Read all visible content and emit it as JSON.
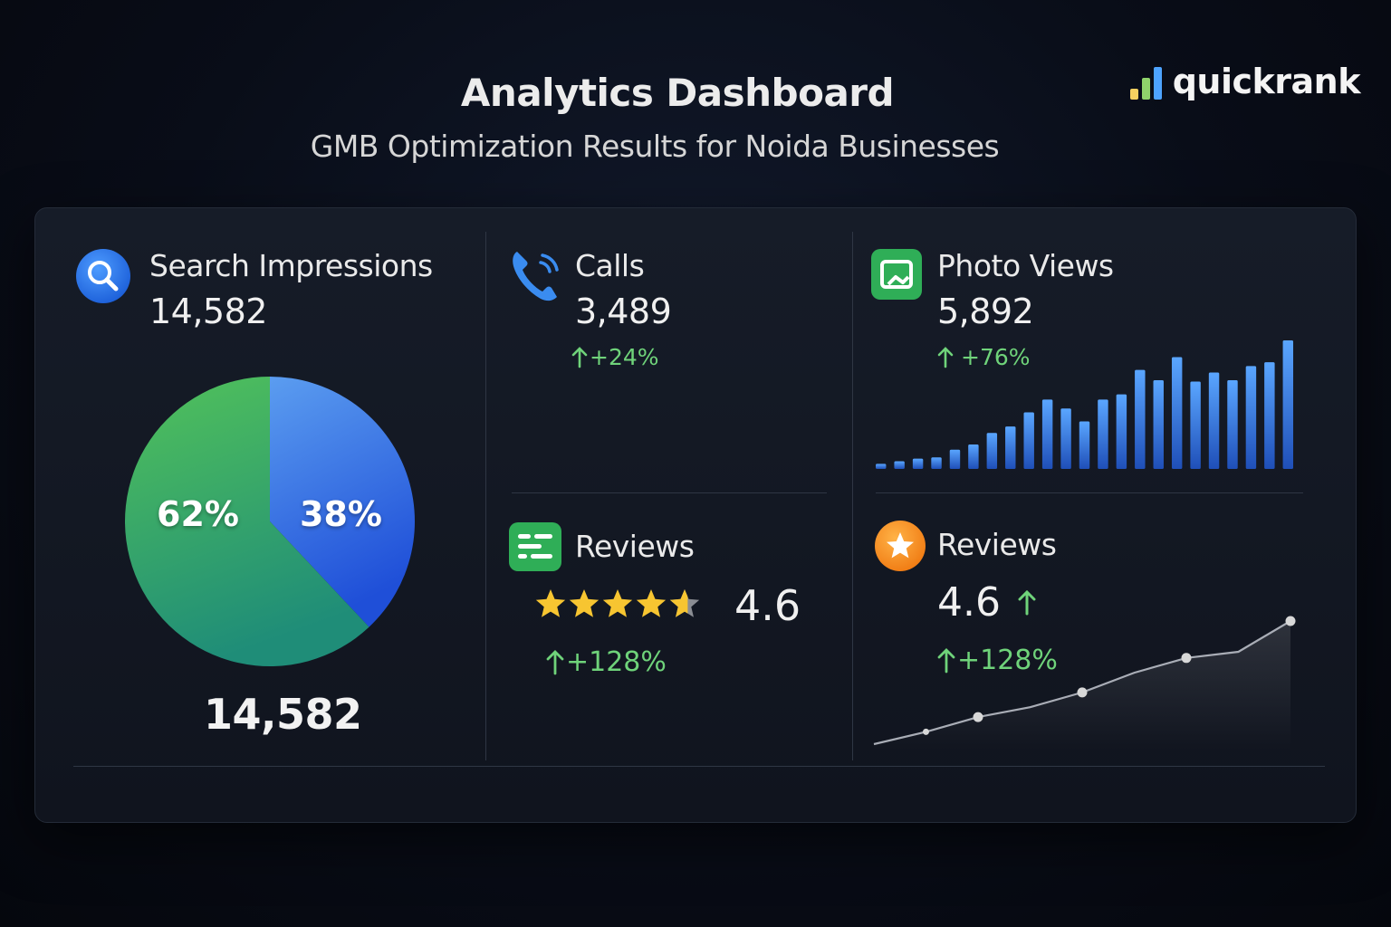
{
  "header": {
    "title": "Analytics Dashboard",
    "subtitle": "GMB Optimization Results for Noida Businesses"
  },
  "brand": {
    "name": "quickrank",
    "bar_colors": [
      "#f5d060",
      "#8fd36b",
      "#4da3ff"
    ]
  },
  "colors": {
    "accent_green": "#6fd37a",
    "pie_green": "#3cb86a",
    "pie_blue": "#2f6cf0",
    "bar_blue": "#3f86ea",
    "star_gold": "#f7c531",
    "star_grey": "#8a8d93"
  },
  "search": {
    "title": "Search Impressions",
    "value": "14,582",
    "total": "14,582",
    "icon": "search-icon"
  },
  "calls": {
    "title": "Calls",
    "value": "3,489",
    "delta": "+24%",
    "icon": "phone-icon"
  },
  "photos": {
    "title": "Photo Views",
    "value": "5,892",
    "delta": "+76%",
    "icon": "photo-icon"
  },
  "reviews_left": {
    "title": "Reviews",
    "rating": "4.6",
    "delta": "+128%",
    "icon": "reviews-list-icon"
  },
  "reviews_right": {
    "title": "Reviews",
    "rating": "4.6",
    "delta": "+128%",
    "icon": "star-badge-icon"
  },
  "chart_data": [
    {
      "type": "pie",
      "slices": [
        {
          "label": "62%",
          "value": 62,
          "color": "#3cb86a"
        },
        {
          "label": "38%",
          "value": 38,
          "color": "#2f6cf0"
        }
      ],
      "title": ""
    },
    {
      "type": "bar",
      "values": [
        4,
        6,
        8,
        9,
        15,
        19,
        28,
        33,
        44,
        54,
        47,
        37,
        54,
        58,
        77,
        69,
        87,
        68,
        75,
        69,
        80,
        83,
        100
      ],
      "ylim": [
        0,
        100
      ],
      "title": ""
    },
    {
      "type": "line",
      "x": [
        0,
        1,
        2,
        3,
        4,
        5,
        6,
        7,
        8
      ],
      "y": [
        0,
        10,
        22,
        30,
        42,
        58,
        70,
        75,
        100
      ],
      "markers": [
        1,
        2,
        4,
        6,
        8
      ],
      "ylim": [
        0,
        100
      ],
      "title": ""
    },
    {
      "type": "bar",
      "subtype": "star-rating",
      "value": 4.6,
      "max": 5
    }
  ]
}
